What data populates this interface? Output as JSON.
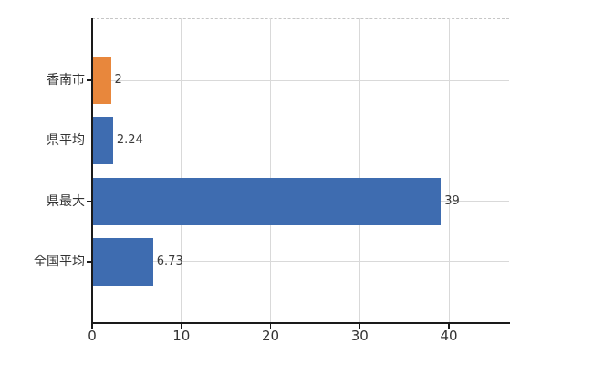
{
  "chart_data": {
    "type": "bar",
    "orientation": "horizontal",
    "title": "",
    "xlabel": "",
    "ylabel": "",
    "categories": [
      "香南市",
      "県平均",
      "県最大",
      "全国平均"
    ],
    "values": [
      2,
      2.24,
      39,
      6.73
    ],
    "value_labels": [
      "2",
      "2.24",
      "39",
      "6.73"
    ],
    "bar_colors": [
      "#e8873c",
      "#3e6cb0",
      "#3e6cb0",
      "#3e6cb0"
    ],
    "x_ticks": [
      0,
      10,
      20,
      30,
      40
    ],
    "x_tick_labels": [
      "0",
      "10",
      "20",
      "30",
      "40"
    ],
    "xlim": [
      0,
      46.75
    ],
    "grid": true,
    "legend": false,
    "colors": {
      "axis": "#1a1a1a",
      "gridline": "#d9d9d9",
      "top_border_dashed": "#c6c6c6",
      "tick_text": "#333333",
      "value_text": "#3a3a3a",
      "background": "#ffffff"
    }
  }
}
